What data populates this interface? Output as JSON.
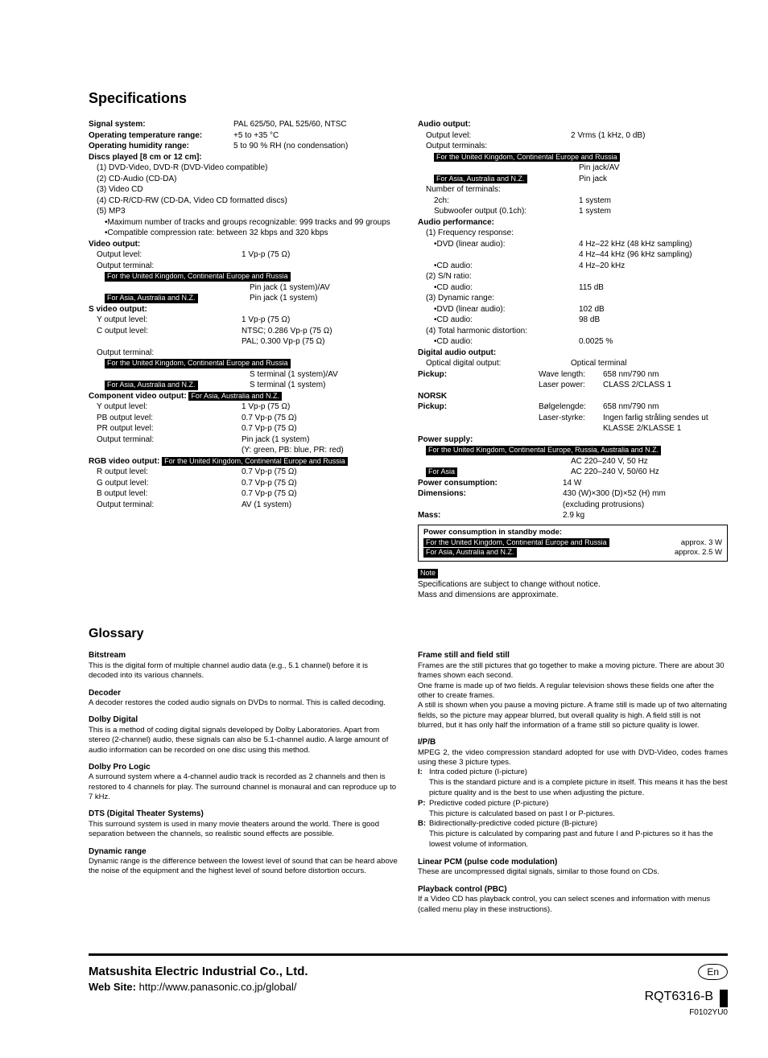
{
  "title_specs": "Specifications",
  "title_glossary": "Glossary",
  "specs": {
    "left": {
      "signal_system_l": "Signal system:",
      "signal_system_v": "PAL 625/50, PAL 525/60, NTSC",
      "op_temp_l": "Operating temperature range:",
      "op_temp_v": "+5 to +35 °C",
      "op_hum_l": "Operating humidity range:",
      "op_hum_v": "5 to 90 % RH (no condensation)",
      "discs_l": "Discs played [8 cm or 12 cm]:",
      "d1": "(1) DVD-Video, DVD-R (DVD-Video compatible)",
      "d2": "(2) CD-Audio (CD-DA)",
      "d3": "(3) Video CD",
      "d4": "(4) CD-R/CD-RW (CD-DA, Video CD formatted discs)",
      "d5": "(5) MP3",
      "d5a": "•Maximum number of tracks and groups recognizable: 999 tracks and 99 groups",
      "d5b": "•Compatible compression rate: between 32 kbps and 320 kbps",
      "video_out": "Video output:",
      "vo_level_l": "Output level:",
      "vo_level_v": "1 Vp-p (75 Ω)",
      "vo_term_l": "Output terminal:",
      "inv_uk": "For the United Kingdom, Continental Europe and Russia",
      "vo_uk_v": "Pin jack (1 system)/AV",
      "inv_asia": "For Asia, Australia and N.Z.",
      "vo_asia_v": "Pin jack (1 system)",
      "svideo": "S video output:",
      "sy_l": "Y output level:",
      "sy_v": "1 Vp-p (75 Ω)",
      "sc_l": "C output level:",
      "sc_v1": "NTSC; 0.286 Vp-p (75 Ω)",
      "sc_v2": "PAL;    0.300 Vp-p (75 Ω)",
      "sterm_l": "Output terminal:",
      "sterm_uk_v": "S terminal (1 system)/AV",
      "sterm_asia_v": "S terminal (1 system)",
      "comp_l": "Component video output:",
      "cy_l": "Y output level:",
      "cy_v": "1 Vp-p (75 Ω)",
      "cpb_l": "PB output level:",
      "cpb_v": "0.7 Vp-p (75 Ω)",
      "cpr_l": "PR output level:",
      "cpr_v": "0.7 Vp-p (75 Ω)",
      "cterm_l": "Output terminal:",
      "cterm_v1": "Pin jack (1 system)",
      "cterm_v2": "(Y: green, PB: blue, PR: red)",
      "rgb_l": "RGB video output:",
      "rr_l": "R output level:",
      "rr_v": "0.7 Vp-p (75 Ω)",
      "rg_l": "G output level:",
      "rg_v": "0.7 Vp-p (75 Ω)",
      "rb_l": "B output level:",
      "rb_v": "0.7 Vp-p (75 Ω)",
      "rterm_l": "Output terminal:",
      "rterm_v": "AV (1 system)"
    },
    "right": {
      "audio_out": "Audio output:",
      "ao_level_l": "Output level:",
      "ao_level_v": "2 Vrms (1 kHz, 0 dB)",
      "ao_term_l": "Output terminals:",
      "ao_uk_v": "Pin jack/AV",
      "ao_asia_v": "Pin jack",
      "num_term_l": "Number of terminals:",
      "nt_2ch_l": "2ch:",
      "nt_2ch_v": "1 system",
      "nt_sub_l": "Subwoofer output (0.1ch):",
      "nt_sub_v": "1 system",
      "audio_perf": "Audio performance:",
      "freq_l": "(1) Frequency response:",
      "freq_dvd_l": "•DVD (linear audio):",
      "freq_dvd_v1": "4 Hz–22 kHz (48 kHz sampling)",
      "freq_dvd_v2": "4 Hz–44 kHz (96 kHz sampling)",
      "freq_cd_l": "•CD audio:",
      "freq_cd_v": "4 Hz–20 kHz",
      "sn_l": "(2) S/N ratio:",
      "sn_cd_l": "•CD audio:",
      "sn_cd_v": "115 dB",
      "dyn_l": "(3) Dynamic range:",
      "dyn_dvd_l": "•DVD (linear audio):",
      "dyn_dvd_v": "102 dB",
      "dyn_cd_l": "•CD audio:",
      "dyn_cd_v": "98 dB",
      "thd_l": "(4) Total harmonic distortion:",
      "thd_cd_l": "•CD audio:",
      "thd_cd_v": "0.0025 %",
      "dao": "Digital audio output:",
      "dao_opt_l": "Optical digital output:",
      "dao_opt_v": "Optical terminal",
      "pickup_l": "Pickup:",
      "pu_wave_l": "Wave length:",
      "pu_wave_v": "658 nm/790 nm",
      "pu_laser_l": "Laser power:",
      "pu_laser_v": "CLASS 2/CLASS 1",
      "norsk": "NORSK",
      "npu_l": "Pickup:",
      "npu_bl_l": "Bølgelengde:",
      "npu_bl_v": "658 nm/790 nm",
      "npu_ls_l": "Laser-styrke:",
      "npu_ls_v": "Ingen farlig stråling sendes ut",
      "npu_ls_v2": "KLASSE 2/KLASSE 1",
      "psupply_l": "Power supply:",
      "inv_long": "For the United Kingdom, Continental Europe, Russia, Australia and N.Z.",
      "ps_uk_v": "AC 220–240 V, 50 Hz",
      "inv_short": "For Asia",
      "ps_asia_v": "AC 220–240 V, 50/60 Hz",
      "pcons_l": "Power consumption:",
      "pcons_v": "14 W",
      "dim_l": "Dimensions:",
      "dim_v1": "430 (W)×300 (D)×52 (H) mm",
      "dim_v2": "(excluding protrusions)",
      "mass_l": "Mass:",
      "mass_v": "2.9 kg",
      "standby_title": "Power consumption in standby mode:",
      "standby_uk_v": "approx. 3 W",
      "standby_asia_v": "approx. 2.5 W",
      "note_label": "Note",
      "note1": "Specifications are subject to change without notice.",
      "note2": "Mass and dimensions are approximate."
    }
  },
  "glossary": {
    "left": [
      {
        "t": "Bitstream",
        "b": "This is the digital form of multiple channel audio data (e.g., 5.1 channel) before it is decoded into its various channels."
      },
      {
        "t": "Decoder",
        "b": "A decoder restores the coded audio signals on DVDs to normal. This is called decoding."
      },
      {
        "t": "Dolby Digital",
        "b": "This is a method of coding digital signals developed by Dolby Laboratories. Apart from stereo (2-channel) audio, these signals can also be 5.1-channel audio. A large amount of audio information can be recorded on one disc using this method."
      },
      {
        "t": "Dolby Pro Logic",
        "b": "A surround system where a 4-channel audio track is recorded as 2 channels and then is restored to 4 channels for play. The surround channel is monaural and can reproduce up to 7 kHz."
      },
      {
        "t": "DTS (Digital Theater Systems)",
        "b": "This surround system is used in many movie theaters around the world. There is good separation between the channels, so realistic sound effects are possible."
      },
      {
        "t": "Dynamic range",
        "b": "Dynamic range is the difference between the lowest level of sound that can be heard above the noise of the equipment and the highest level of sound before distortion occurs."
      }
    ],
    "right": {
      "frame_t": "Frame still and field still",
      "frame_b1": "Frames are the still pictures that go together to make a moving picture. There are about 30 frames shown each second.",
      "frame_b2": "One frame is made up of two fields. A regular television shows these fields one after the other to create frames.",
      "frame_b3": "A still is shown when you pause a moving picture. A frame still is made up of two alternating fields, so the picture may appear blurred, but overall quality is high. A field still is not blurred, but it has only half the information of a frame still so picture quality is lower.",
      "ipb_t": "I/P/B",
      "ipb_intro": "MPEG 2, the video compression standard adopted for use with DVD-Video, codes frames using these 3 picture types.",
      "ipb_i_t": "Intra coded picture (I-picture)",
      "ipb_i_b": "This is the standard picture and is a complete picture in itself. This means it has the best picture quality and is the best to use when adjusting the picture.",
      "ipb_p_t": "Predictive coded picture (P-picture)",
      "ipb_p_b": "This picture is calculated based on past I or P-pictures.",
      "ipb_b_t": "Bidirectionally-predictive coded picture (B-picture)",
      "ipb_b_b": "This picture is calculated by comparing past and future I and P-pictures so it has the lowest volume of information.",
      "lpcm_t": "Linear PCM (pulse code modulation)",
      "lpcm_b": "These are uncompressed digital signals, similar to those found on CDs.",
      "pbc_t": "Playback control (PBC)",
      "pbc_b": "If a Video CD has playback control, you can select scenes and information with menus (called menu play in these instructions)."
    }
  },
  "footer": {
    "company": "Matsushita Electric Industrial Co., Ltd.",
    "web_l": "Web Site: ",
    "web_url": "http://www.panasonic.co.jp/global/",
    "en": "En",
    "part": "RQT6316-B",
    "sub": "F0102YU0"
  }
}
